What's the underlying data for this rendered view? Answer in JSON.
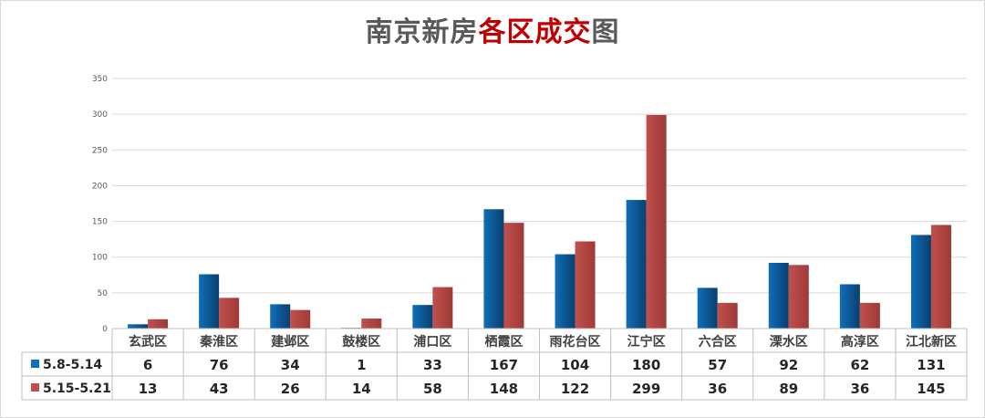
{
  "title_part1": "南京新房",
  "title_part2": "各区成交",
  "title_part3": "图",
  "colors": {
    "series1": "#0e6fba",
    "series1_dark": "#0a3f6e",
    "series2": "#c0504d",
    "series2_dark": "#9e3a37",
    "title_highlight": "#c00000",
    "gridline": "#d9d9d9",
    "table_border": "#bfbfbf"
  },
  "chart_data": {
    "type": "bar",
    "categories": [
      "玄武区",
      "秦淮区",
      "建邺区",
      "鼓楼区",
      "浦口区",
      "栖霞区",
      "雨花台区",
      "江宁区",
      "六合区",
      "溧水区",
      "高淳区",
      "江北新区"
    ],
    "series": [
      {
        "name": "5.8-5.14",
        "values": [
          6,
          76,
          34,
          1,
          33,
          167,
          104,
          180,
          57,
          92,
          62,
          131
        ]
      },
      {
        "name": "5.15-5.21",
        "values": [
          13,
          43,
          26,
          14,
          58,
          148,
          122,
          299,
          36,
          89,
          36,
          145
        ]
      }
    ],
    "yticks": [
      0,
      50,
      100,
      150,
      200,
      250,
      300,
      350
    ],
    "ylim": [
      0,
      350
    ],
    "grid": true,
    "data_table": true
  }
}
